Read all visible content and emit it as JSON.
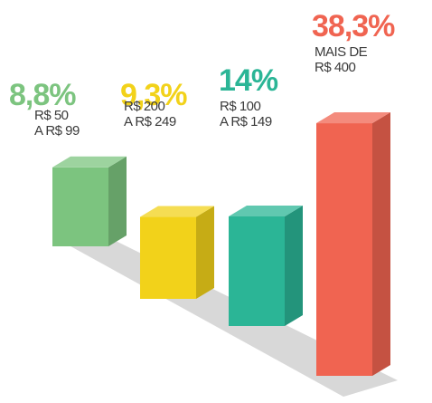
{
  "chart_data": {
    "type": "bar3d",
    "categories": [
      "R$ 50\nA R$ 99",
      "R$ 200\nA R$ 249",
      "R$ 100\nA R$ 149",
      "MAIS DE\nR$ 400"
    ],
    "values": [
      8.8,
      9.3,
      14,
      38.3
    ],
    "value_labels": [
      "8,8%",
      "9,3%",
      "14%",
      "38,3%"
    ],
    "colors": [
      "#7cc47f",
      "#f2d21a",
      "#2bb596",
      "#f06451"
    ]
  }
}
